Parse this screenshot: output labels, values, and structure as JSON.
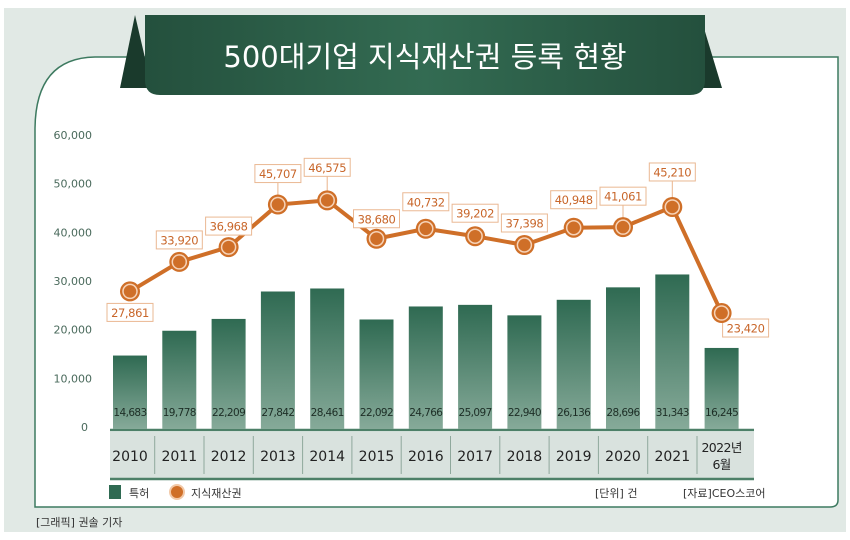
{
  "title": "500대기업 지식재산권 등록 현황",
  "credit": "[그래픽] 권솔 기자",
  "unit_note": "[단위] 건",
  "source_note": "[자료]CEO스코어",
  "colors": {
    "bar_top": "#2f6a52",
    "bar_bottom": "#86aa99",
    "line": "#cf6f28",
    "banner": "#2c5e48",
    "bg": "#e1e9e5",
    "axis_band": "#d9e2de"
  },
  "chart_data": {
    "type": "bar",
    "title": "500대기업 지식재산권 등록 현황",
    "categories": [
      "2010",
      "2011",
      "2012",
      "2013",
      "2014",
      "2015",
      "2016",
      "2017",
      "2018",
      "2019",
      "2020",
      "2021",
      "2022년|6월"
    ],
    "ylim": [
      0,
      60000
    ],
    "yticks": [
      "0",
      "10,000",
      "20,000",
      "30,000",
      "40,000",
      "50,000",
      "60,000"
    ],
    "ytick_values": [
      0,
      10000,
      20000,
      30000,
      40000,
      50000,
      60000
    ],
    "legend_position": "bottom-left",
    "series": [
      {
        "name": "특허",
        "type": "bar",
        "values": [
          14683,
          19778,
          22209,
          27842,
          28461,
          22092,
          24766,
          25097,
          22940,
          26136,
          28696,
          31343,
          16245
        ],
        "labels": [
          "14,683",
          "19,778",
          "22,209",
          "27,842",
          "28,461",
          "22,092",
          "24,766",
          "25,097",
          "22,940",
          "26,136",
          "28,696",
          "31,343",
          "16,245"
        ]
      },
      {
        "name": "지식재산권",
        "type": "line",
        "values": [
          27861,
          33920,
          36968,
          45707,
          46575,
          38680,
          40732,
          39202,
          37398,
          40948,
          41061,
          45210,
          23420
        ],
        "labels": [
          "27,861",
          "33,920",
          "36,968",
          "45,707",
          "46,575",
          "38,680",
          "40,732",
          "39,202",
          "37,398",
          "40,948",
          "41,061",
          "45,210",
          "23,420"
        ]
      }
    ]
  }
}
